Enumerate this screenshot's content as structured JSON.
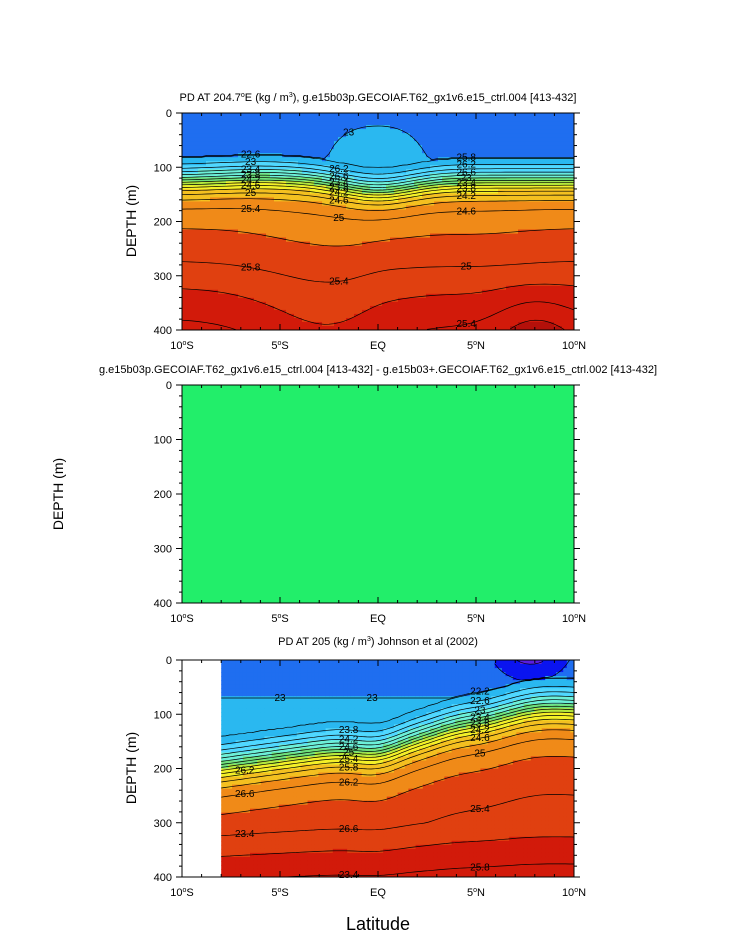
{
  "chart_data": [
    {
      "type": "contour",
      "title": "PD AT 204.7°E (kg / m³), g.e15b03p.GECOIAF.T62_gx1v6.e15_ctrl.004 [413-432]",
      "title_parts": {
        "pre": "PD AT 204.7",
        "sup": "o",
        "mid": "E (kg / m",
        "sup2": "3",
        "post": "), g.e15b03p.GECOIAF.T62_gx1v6.e15_ctrl.004 [413-432]"
      },
      "ylabel": "DEPTH (m)",
      "xlabel": "",
      "ylim": [
        0,
        400
      ],
      "xlim": [
        -10,
        10
      ],
      "x_ticks": [
        {
          "value": -10,
          "label": "10",
          "sup": "o",
          "suffix": "S"
        },
        {
          "value": -5,
          "label": "5",
          "sup": "o",
          "suffix": "S"
        },
        {
          "value": 0,
          "label": "EQ",
          "sup": "",
          "suffix": ""
        },
        {
          "value": 5,
          "label": "5",
          "sup": "o",
          "suffix": "N"
        },
        {
          "value": 10,
          "label": "10",
          "sup": "o",
          "suffix": "N"
        }
      ],
      "y_ticks": [
        0,
        100,
        200,
        300,
        400
      ],
      "contour_labels": [
        "23",
        "22.6",
        "23",
        "23.4",
        "23.8",
        "24.2",
        "24.6",
        "25",
        "25.4",
        "25.8",
        "26.2",
        "26.6",
        "23.4",
        "23.8",
        "24.2",
        "24.6",
        "25",
        "25.4",
        "25.8",
        "26.2",
        "26.6",
        "23",
        "23.4",
        "23.8",
        "24.2",
        "24.6",
        "25",
        "25.4",
        "25.8",
        "26.2",
        "26.6"
      ],
      "levels_range": [
        22.6,
        26.6
      ],
      "shown_level_labels": [
        22.6,
        23,
        23.4,
        23.8,
        24.2,
        24.6,
        25,
        25.4,
        25.8,
        26.2,
        26.6
      ]
    },
    {
      "type": "contour",
      "title": "g.e15b03p.GECOIAF.T62_gx1v6.e15_ctrl.004 [413-432] - g.e15b03+.GECOIAF.T62_gx1v6.e15_ctrl.002 [413-432]",
      "ylabel": "DEPTH (m)",
      "xlabel": "",
      "ylim": [
        0,
        400
      ],
      "xlim": [
        -10,
        10
      ],
      "x_ticks": [
        {
          "value": -10,
          "label": "10",
          "sup": "o",
          "suffix": "S"
        },
        {
          "value": -5,
          "label": "5",
          "sup": "o",
          "suffix": "S"
        },
        {
          "value": 0,
          "label": "EQ",
          "sup": "",
          "suffix": ""
        },
        {
          "value": 5,
          "label": "5",
          "sup": "o",
          "suffix": "N"
        },
        {
          "value": 10,
          "label": "10",
          "sup": "o",
          "suffix": "N"
        }
      ],
      "y_ticks": [
        0,
        100,
        200,
        300,
        400
      ],
      "difference_value": 0,
      "fill_color": "#22ee6a"
    },
    {
      "type": "contour",
      "title": "PD AT 205 (kg / m³) Johnson et al (2002)",
      "title_parts": {
        "pre": "PD AT 205 (kg / m",
        "sup": "3",
        "post": ") Johnson et al (2002)"
      },
      "ylabel": "DEPTH (m)",
      "xlabel": "Latitude",
      "ylim": [
        0,
        400
      ],
      "xlim": [
        -10,
        10
      ],
      "data_xlim": [
        -8,
        10
      ],
      "x_ticks": [
        {
          "value": -10,
          "label": "10",
          "sup": "o",
          "suffix": "S"
        },
        {
          "value": -5,
          "label": "5",
          "sup": "o",
          "suffix": "S"
        },
        {
          "value": 0,
          "label": "EQ",
          "sup": "",
          "suffix": ""
        },
        {
          "value": 5,
          "label": "5",
          "sup": "o",
          "suffix": "N"
        },
        {
          "value": 10,
          "label": "10",
          "sup": "o",
          "suffix": "N"
        }
      ],
      "y_ticks": [
        0,
        100,
        200,
        300,
        400
      ],
      "contour_labels": [
        "23",
        "23",
        "22.2",
        "22.6",
        "23",
        "23.4",
        "23.8",
        "24.2",
        "24.6",
        "25",
        "25.4",
        "25.8",
        "26.2",
        "26.6",
        "23.4",
        "23.8",
        "24.2",
        "24.6",
        "25",
        "25.4",
        "25.8",
        "26.2",
        "26.6",
        "23.4",
        "23.8",
        "24.2",
        "24.6",
        "25",
        "25.4",
        "25.8",
        "26.2",
        "26.6"
      ],
      "levels_range": [
        22.2,
        26.6
      ],
      "shown_level_labels": [
        22.2,
        22.6,
        23,
        23.4,
        23.8,
        24.2,
        24.6,
        25,
        25.4,
        25.8,
        26.2,
        26.6
      ]
    }
  ],
  "colors": {
    "c22_2": "#5a1ee0",
    "c22_6": "#0a14f0",
    "c22_8": "#1f6ef0",
    "c23": "#2ab8f0",
    "c23_4": "#50d8ff",
    "c23_8": "#6cf0d8",
    "c24_2": "#6ee07a",
    "c24_6": "#b4e83c",
    "c25": "#f4f028",
    "c25_4": "#f4c020",
    "c25_8": "#f08a18",
    "c26_2": "#e04010",
    "c26_6": "#d21a0a",
    "c27": "#b4100a",
    "diff": "#22ee6a"
  }
}
